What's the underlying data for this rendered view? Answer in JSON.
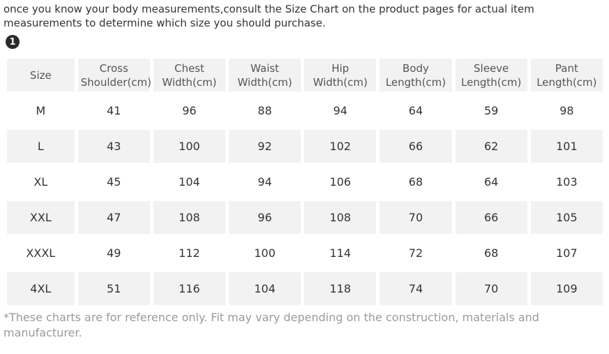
{
  "intro": {
    "text": "once you know your body measurements,consult the Size Chart on the product pages for actual item measurements to determine which size you should purchase.",
    "badge": "1"
  },
  "chart_data": {
    "type": "table",
    "columns": [
      "Size",
      "Cross Shoulder(cm)",
      "Chest Width(cm)",
      "Waist Width(cm)",
      "Hip Width(cm)",
      "Body Length(cm)",
      "Sleeve Length(cm)",
      "Pant Length(cm)"
    ],
    "rows": [
      [
        "M",
        "41",
        "96",
        "88",
        "94",
        "64",
        "59",
        "98"
      ],
      [
        "L",
        "43",
        "100",
        "92",
        "102",
        "66",
        "62",
        "101"
      ],
      [
        "XL",
        "45",
        "104",
        "94",
        "106",
        "68",
        "64",
        "103"
      ],
      [
        "XXL",
        "47",
        "108",
        "96",
        "108",
        "70",
        "66",
        "105"
      ],
      [
        "XXXL",
        "49",
        "112",
        "100",
        "114",
        "72",
        "68",
        "107"
      ],
      [
        "4XL",
        "51",
        "116",
        "104",
        "118",
        "74",
        "70",
        "109"
      ]
    ]
  },
  "footnote": "*These charts are for reference only. Fit may vary depending on the construction, materials and manufacturer.",
  "colors": {
    "cell_bg": "#f2f2f2",
    "header_text": "#555555",
    "body_text": "#333333",
    "footnote_text": "#9a9a9a",
    "badge_bg": "#2b2b2b"
  }
}
